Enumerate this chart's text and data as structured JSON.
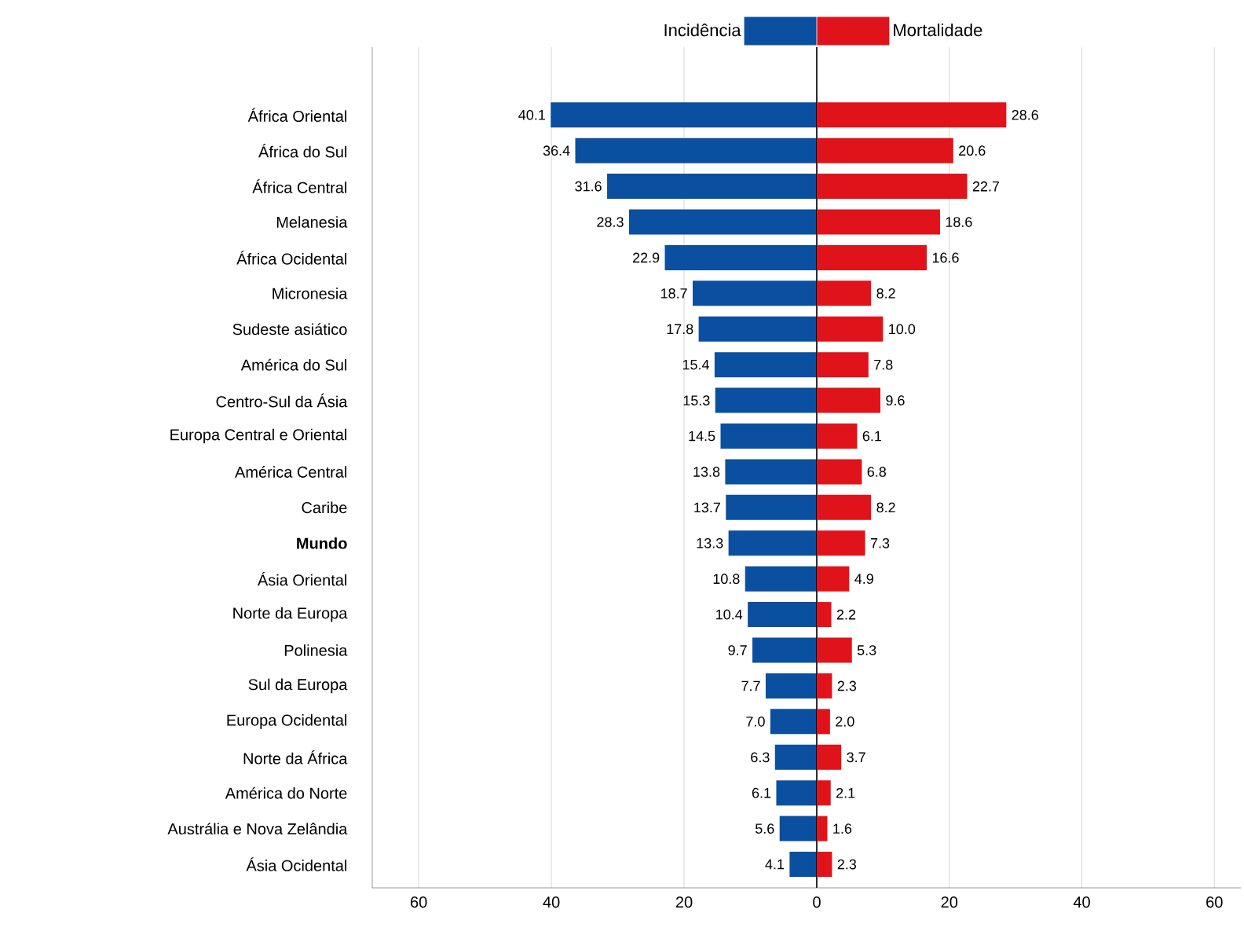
{
  "chart_data": [
    {
      "type": "bar",
      "orientation": "horizontal",
      "legend": "top",
      "grid": "x",
      "categories": [
        "África Oriental",
        "África do Sul",
        "África Central",
        "Melanesia",
        "África Ocidental",
        "Micronesia",
        "Sudeste asiático",
        "América do Sul",
        "Centro-Sul da Ásia",
        "Europa Central e Oriental",
        "América Central",
        "Caribe",
        "**Mundo**",
        "Ásia Oriental",
        "Norte da Europa",
        "Polinesia",
        "Sul da Europa",
        "Europa Ocidental",
        "Norte da África",
        "América do Norte",
        "Austrália e Nova Zelândia",
        "Ásia Ocidental"
      ],
      "series": [
        {
          "name": "Incidência",
          "color": "#0b4fa0",
          "values": [
            40.1,
            36.4,
            31.6,
            28.3,
            22.9,
            18.7,
            17.8,
            15.4,
            15.3,
            14.5,
            13.8,
            13.7,
            13.3,
            10.8,
            10.4,
            9.7,
            7.7,
            7.0,
            6.3,
            6.1,
            5.6,
            4.1
          ],
          "value_labels": [
            "40.1",
            "36.4",
            "31.6",
            "28.3",
            "22.9",
            "18.7",
            "17.8",
            "15.4",
            "15.3",
            "14.5",
            "13.8",
            "13.7",
            "13.3",
            "10.8",
            "10.4",
            "9.7",
            "7.7",
            "7.0",
            "6.3",
            "6.1",
            "5.6",
            "4.1"
          ]
        }
      ],
      "xlim": [
        67,
        0
      ],
      "xticks": [
        60,
        40,
        20,
        0
      ]
    },
    {
      "type": "bar",
      "orientation": "horizontal",
      "legend": "top",
      "grid": "x",
      "tick_labels": "x",
      "categories": [
        null,
        null,
        null,
        null,
        null,
        null,
        null,
        null,
        null,
        null,
        null,
        null,
        null,
        null,
        null,
        null,
        null,
        null,
        null,
        null,
        null,
        null
      ],
      "series": [
        {
          "name": "Mortalidade",
          "color": "#e0131b",
          "values": [
            28.6,
            20.6,
            22.7,
            18.6,
            16.6,
            8.2,
            10.0,
            7.8,
            9.6,
            6.1,
            6.8,
            8.2,
            7.3,
            4.9,
            2.2,
            5.3,
            2.3,
            2.0,
            3.7,
            2.1,
            1.6,
            2.3
          ],
          "value_labels": [
            "28.6",
            "20.6",
            "22.7",
            "18.6",
            "16.6",
            "8.2",
            "10.0",
            "7.8",
            "9.6",
            "6.1",
            "6.8",
            "8.2",
            "7.3",
            "4.9",
            "2.2",
            "5.3",
            "2.3",
            "2.0",
            "3.7",
            "2.1",
            "1.6",
            "2.3"
          ]
        }
      ],
      "xlim": [
        0,
        64
      ],
      "xticks": [
        20,
        40,
        60
      ]
    }
  ]
}
